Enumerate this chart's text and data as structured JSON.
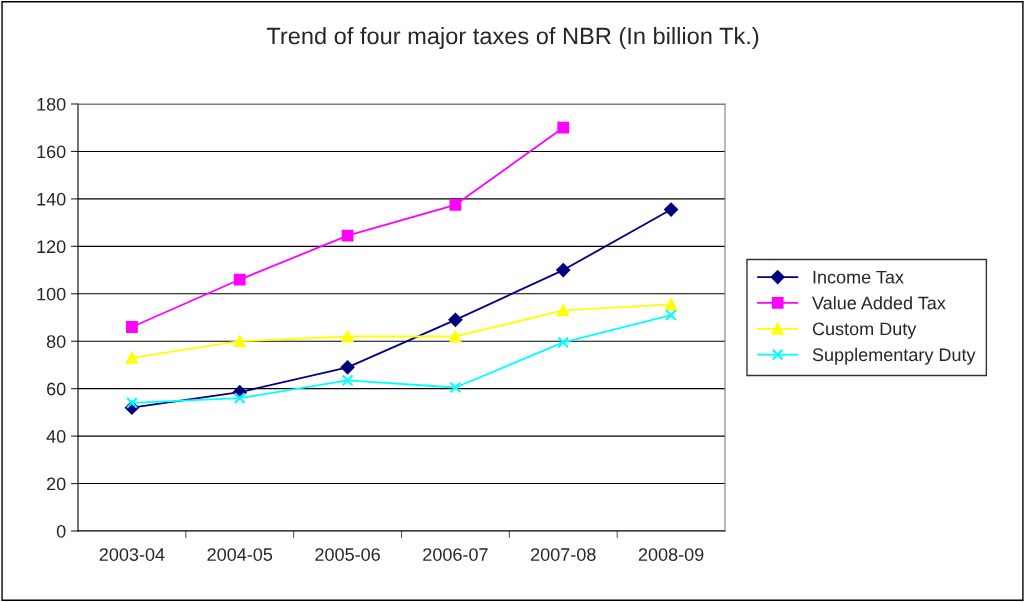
{
  "chart_data": {
    "type": "line",
    "title": "Trend of four major taxes of NBR (In billion Tk.)",
    "categories": [
      "2003-04",
      "2004-05",
      "2005-06",
      "2006-07",
      "2007-08",
      "2008-09"
    ],
    "series": [
      {
        "name": "Income Tax",
        "color": "#000080",
        "marker": "diamond",
        "values": [
          52,
          58.5,
          69,
          89,
          110,
          135.5
        ]
      },
      {
        "name": "Value Added Tax",
        "color": "#ff00ff",
        "marker": "square",
        "values": [
          86,
          106,
          124.5,
          137.5,
          170,
          null
        ]
      },
      {
        "name": "Custom Duty",
        "color": "#ffff00",
        "marker": "triangle",
        "values": [
          73,
          80,
          82,
          82,
          93,
          95.5
        ]
      },
      {
        "name": "Supplementary Duty",
        "color": "#00ffff",
        "marker": "cross",
        "values": [
          54,
          56,
          63.5,
          60.5,
          79.5,
          91
        ]
      }
    ],
    "ylim": [
      0,
      180
    ],
    "yticks": [
      0,
      20,
      40,
      60,
      80,
      100,
      120,
      140,
      160,
      180
    ],
    "grid": "y",
    "legend": "right"
  }
}
